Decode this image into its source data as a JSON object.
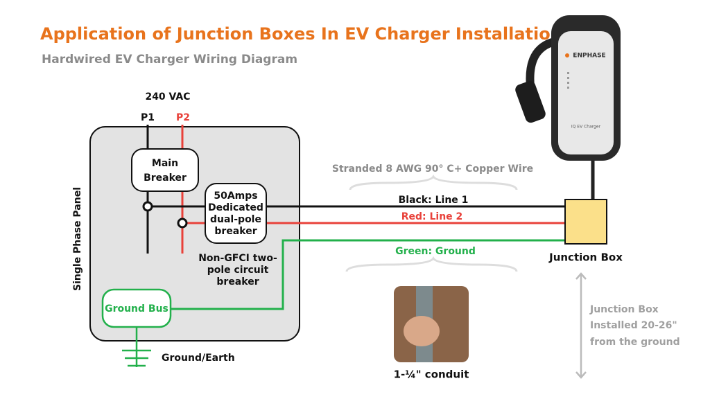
{
  "header": {
    "title": "Application of Junction Boxes In EV Charger Installation",
    "subtitle": "Hardwired EV Charger Wiring Diagram"
  },
  "supply": {
    "voltage": "240 VAC",
    "p1": "P1",
    "p2": "P2"
  },
  "panel": {
    "label": "Single Phase Panel",
    "main_breaker": [
      "Main",
      "Breaker"
    ],
    "dedicated_breaker": [
      "50Amps",
      "Dedicated",
      "dual-pole",
      "breaker"
    ],
    "note": [
      "Non-GFCI two-",
      "pole circuit",
      "breaker"
    ],
    "ground_bus": "Ground Bus"
  },
  "ground": "Ground/Earth",
  "wire": {
    "label": "Stranded 8 AWG 90° C+ Copper Wire",
    "black": "Black: Line 1",
    "red": "Red: Line 2",
    "green": "Green: Ground"
  },
  "junction_box": {
    "label": "Junction Box",
    "height_note": [
      "Junction Box",
      "Installed 20-26\"",
      "from the ground"
    ]
  },
  "conduit": "1-¼\" conduit",
  "charger": {
    "brand": "ENPHASE",
    "model": "IQ EV Charger"
  }
}
